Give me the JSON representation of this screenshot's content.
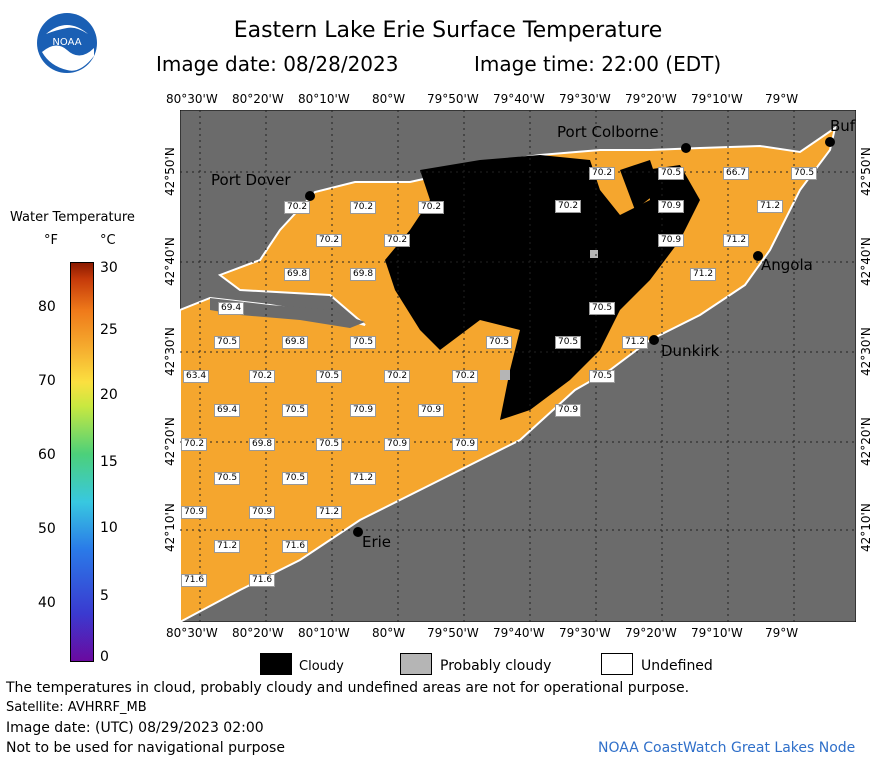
{
  "header": {
    "title": "Eastern Lake Erie Surface Temperature",
    "image_date": "Image date: 08/28/2023",
    "image_time": "Image time: 22:00 (EDT)"
  },
  "colorbar": {
    "title": "Water Temperature",
    "unit_f": "°F",
    "unit_c": "°C",
    "f_ticks": [
      "80",
      "70",
      "60",
      "50",
      "40"
    ],
    "c_ticks": [
      "30",
      "25",
      "20",
      "15",
      "10",
      "5",
      "0"
    ]
  },
  "map": {
    "lon_labels": [
      "80°30'W",
      "80°20'W",
      "80°10'W",
      "80°W",
      "79°50'W",
      "79°40'W",
      "79°30'W",
      "79°20'W",
      "79°10'W",
      "79°W"
    ],
    "lat_labels": [
      "42°50'N",
      "42°40'N",
      "42°30'N",
      "42°20'N",
      "42°10'N"
    ],
    "cities": [
      "Port Colborne",
      "Port Dover",
      "Angola",
      "Dunkirk",
      "Erie",
      "Buf"
    ],
    "temps": [
      "70.2",
      "70.2",
      "70.2",
      "70.2",
      "70.2",
      "70.5",
      "66.7",
      "70.5",
      "70.9",
      "71.2",
      "70.2",
      "70.2",
      "70.9",
      "71.2",
      "69.8",
      "69.8",
      "71.2",
      "69.4",
      "70.5",
      "70.5",
      "69.8",
      "70.5",
      "70.5",
      "70.5",
      "71.2",
      "63.4",
      "70.2",
      "70.5",
      "70.2",
      "70.2",
      "70.5",
      "69.4",
      "70.5",
      "70.9",
      "70.9",
      "70.9",
      "70.2",
      "69.8",
      "70.5",
      "70.9",
      "70.9",
      "70.5",
      "70.5",
      "71.2",
      "70.9",
      "70.9",
      "71.2",
      "71.2",
      "71.6",
      "71.6",
      "71.6"
    ]
  },
  "legend": {
    "cloudy": "Cloudy",
    "probably_cloudy": "Probably cloudy",
    "undefined": "Undefined"
  },
  "footer": {
    "disclaimer": "The temperatures in cloud, probably cloudy and undefined areas are not for operational purpose.",
    "satellite": "Satellite: AVHRRF_MB",
    "utc_date": "Image date: (UTC) 08/29/2023  02:00",
    "nav_warning": "Not to be used for navigational purpose",
    "credit": "NOAA CoastWatch Great Lakes Node"
  },
  "logo_text": "NOAA",
  "colors": {
    "land": "#6b6b6b",
    "water": "#f5a62e",
    "cloud": "#000000",
    "prob_cloud": "#b5b5b5",
    "credit": "#2f6fc9"
  }
}
